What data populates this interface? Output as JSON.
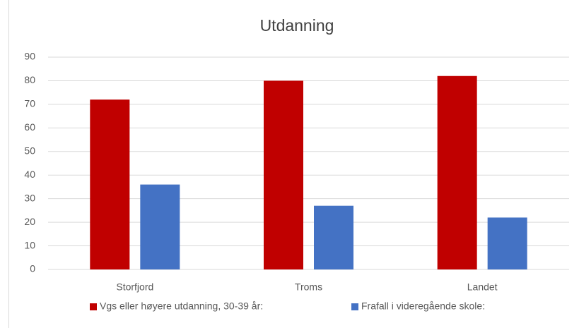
{
  "chart_data": {
    "type": "bar",
    "title": "Utdanning",
    "categories": [
      "Storfjord",
      "Troms",
      "Landet"
    ],
    "series": [
      {
        "name": "Vgs eller høyere utdanning, 30-39 år:",
        "color": "#c00000",
        "values": [
          72,
          80,
          82
        ]
      },
      {
        "name": "Frafall i videregående skole:",
        "color": "#4472c4",
        "values": [
          36,
          27,
          22
        ]
      }
    ],
    "ylim": [
      0,
      90
    ],
    "yticks": [
      0,
      10,
      20,
      30,
      40,
      50,
      60,
      70,
      80,
      90
    ],
    "grid": true,
    "legend": "bottom"
  }
}
